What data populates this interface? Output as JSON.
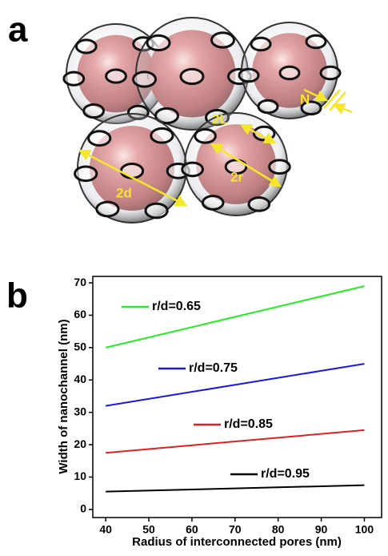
{
  "figure": {
    "panel_a_label": "a",
    "panel_b_label": "b",
    "illustration_labels": [
      "N",
      "2L",
      "2r",
      "2d"
    ]
  },
  "chart_data": {
    "type": "line",
    "x_label": "Radius of interconnected pores (nm)",
    "y_label": "Width of nanochannel (nm)",
    "x": [
      40,
      100
    ],
    "series": [
      {
        "name": "r/d=0.65",
        "color": "#22ee22",
        "values": [
          50,
          69
        ]
      },
      {
        "name": "r/d=0.75",
        "color": "#1a1ae0",
        "values": [
          32,
          45
        ]
      },
      {
        "name": "r/d=0.85",
        "color": "#e02020",
        "values": [
          17.5,
          24.5
        ]
      },
      {
        "name": "r/d=0.95",
        "color": "#000000",
        "values": [
          5.5,
          7.5
        ]
      }
    ],
    "xlim": [
      37,
      104
    ],
    "ylim": [
      -2.5,
      72
    ],
    "xticks": [
      40,
      50,
      60,
      70,
      80,
      90,
      100
    ],
    "yticks": [
      0,
      10,
      20,
      30,
      40,
      50,
      60,
      70
    ]
  }
}
